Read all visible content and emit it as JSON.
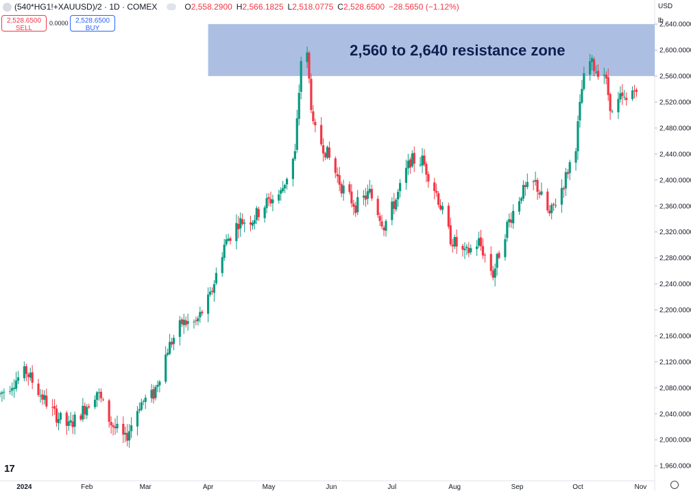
{
  "header": {
    "symbol": "(540*HG1!+XAUUSD)/2 · 1D · COMEX",
    "o_label": "O",
    "o_value": "2,558.2900",
    "h_label": "H",
    "h_value": "2,566.1825",
    "l_label": "L",
    "l_value": "2,518.0775",
    "c_label": "C",
    "c_value": "2,528.6500",
    "change": "−28.5650 (−1.12%)"
  },
  "trade": {
    "sell_price": "2,528.6500",
    "sell_label": "SELL",
    "spread": "0.0000",
    "buy_price": "2,528.6500",
    "buy_label": "BUY"
  },
  "units": {
    "currency": "USD",
    "measure": "lb"
  },
  "colors": {
    "up": "#089981",
    "down": "#f23645",
    "zone": "#9eb4de",
    "zone_text": "#0d1f4d"
  },
  "chart_data": {
    "type": "candlestick",
    "ylim": [
      1937,
      2656
    ],
    "y_ticks": [
      {
        "v": 2640,
        "label": "2,640.0000"
      },
      {
        "v": 2600,
        "label": "2,600.0000"
      },
      {
        "v": 2560,
        "label": "2,560.0000"
      },
      {
        "v": 2520,
        "label": "2,520.0000"
      },
      {
        "v": 2480,
        "label": "2,480.0000"
      },
      {
        "v": 2440,
        "label": "2,440.0000"
      },
      {
        "v": 2400,
        "label": "2,400.0000"
      },
      {
        "v": 2360,
        "label": "2,360.0000"
      },
      {
        "v": 2320,
        "label": "2,320.0000"
      },
      {
        "v": 2280,
        "label": "2,280.0000"
      },
      {
        "v": 2240,
        "label": "2,240.0000"
      },
      {
        "v": 2200,
        "label": "2,200.0000"
      },
      {
        "v": 2160,
        "label": "2,160.0000"
      },
      {
        "v": 2120,
        "label": "2,120.0000"
      },
      {
        "v": 2080,
        "label": "2,080.0000"
      },
      {
        "v": 2040,
        "label": "2,040.0000"
      },
      {
        "v": 2000,
        "label": "2,000.0000"
      },
      {
        "v": 1960,
        "label": "1,960.0000"
      }
    ],
    "x_ticks": [
      {
        "date": "2024-01-01",
        "label": "2024"
      },
      {
        "date": "2024-02-01",
        "label": "Feb"
      },
      {
        "date": "2024-03-01",
        "label": "Mar"
      },
      {
        "date": "2024-04-01",
        "label": "Apr"
      },
      {
        "date": "2024-05-01",
        "label": "May"
      },
      {
        "date": "2024-06-01",
        "label": "Jun"
      },
      {
        "date": "2024-07-01",
        "label": "Jul"
      },
      {
        "date": "2024-08-01",
        "label": "Aug"
      },
      {
        "date": "2024-09-01",
        "label": "Sep"
      },
      {
        "date": "2024-10-01",
        "label": "Oct"
      },
      {
        "date": "2024-11-01",
        "label": "Nov"
      }
    ],
    "x_range": [
      "2023-12-20",
      "2024-11-08"
    ],
    "annotation": {
      "text": "2,560 to 2,640 resistance zone",
      "y_low": 2560,
      "y_high": 2640,
      "x_start": "2024-04-01",
      "x_end": "2024-11-08"
    },
    "key_points": [
      [
        "2023-12-20",
        2070
      ],
      [
        "2023-12-27",
        2090
      ],
      [
        "2024-01-02",
        2105
      ],
      [
        "2024-01-09",
        2070
      ],
      [
        "2024-01-16",
        2040
      ],
      [
        "2024-01-23",
        2020
      ],
      [
        "2024-01-30",
        2045
      ],
      [
        "2024-02-06",
        2075
      ],
      [
        "2024-02-13",
        2025
      ],
      [
        "2024-02-20",
        2000
      ],
      [
        "2024-02-27",
        2055
      ],
      [
        "2024-03-05",
        2070
      ],
      [
        "2024-03-12",
        2140
      ],
      [
        "2024-03-19",
        2180
      ],
      [
        "2024-03-26",
        2180
      ],
      [
        "2024-04-02",
        2220
      ],
      [
        "2024-04-09",
        2300
      ],
      [
        "2024-04-16",
        2335
      ],
      [
        "2024-04-23",
        2340
      ],
      [
        "2024-04-30",
        2365
      ],
      [
        "2024-05-07",
        2380
      ],
      [
        "2024-05-14",
        2440
      ],
      [
        "2024-05-17",
        2585
      ],
      [
        "2024-05-20",
        2590
      ],
      [
        "2024-05-23",
        2480
      ],
      [
        "2024-05-30",
        2440
      ],
      [
        "2024-06-06",
        2390
      ],
      [
        "2024-06-13",
        2360
      ],
      [
        "2024-06-20",
        2380
      ],
      [
        "2024-06-27",
        2330
      ],
      [
        "2024-07-03",
        2370
      ],
      [
        "2024-07-10",
        2430
      ],
      [
        "2024-07-16",
        2430
      ],
      [
        "2024-07-23",
        2380
      ],
      [
        "2024-07-30",
        2310
      ],
      [
        "2024-08-06",
        2285
      ],
      [
        "2024-08-13",
        2305
      ],
      [
        "2024-08-20",
        2255
      ],
      [
        "2024-08-27",
        2330
      ],
      [
        "2024-09-03",
        2380
      ],
      [
        "2024-09-10",
        2395
      ],
      [
        "2024-09-17",
        2345
      ],
      [
        "2024-09-24",
        2395
      ],
      [
        "2024-09-30",
        2455
      ],
      [
        "2024-10-03",
        2540
      ],
      [
        "2024-10-06",
        2585
      ],
      [
        "2024-10-10",
        2570
      ],
      [
        "2024-10-14",
        2565
      ],
      [
        "2024-10-18",
        2500
      ],
      [
        "2024-10-22",
        2525
      ],
      [
        "2024-10-26",
        2520
      ],
      [
        "2024-10-29",
        2548
      ],
      [
        "2024-10-30",
        2529
      ]
    ]
  }
}
